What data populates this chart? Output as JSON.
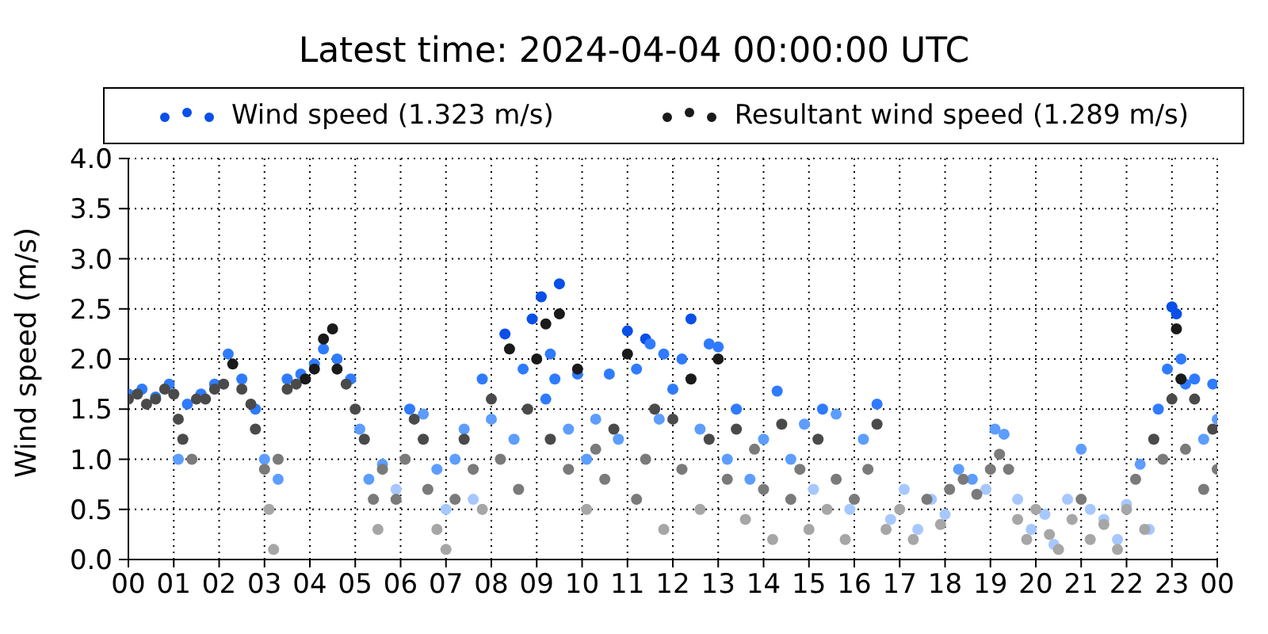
{
  "chart_data": {
    "type": "scatter",
    "title": "Latest time: 2024-04-04 00:00:00 UTC",
    "ylabel": "Wind speed (m/s)",
    "marker": "circle",
    "grid": true,
    "legend": "top",
    "xlim": [
      0,
      24
    ],
    "xticks": [
      {
        "value": 0,
        "label": "00"
      },
      {
        "value": 1,
        "label": "01"
      },
      {
        "value": 2,
        "label": "02"
      },
      {
        "value": 3,
        "label": "03"
      },
      {
        "value": 4,
        "label": "04"
      },
      {
        "value": 5,
        "label": "05"
      },
      {
        "value": 6,
        "label": "06"
      },
      {
        "value": 7,
        "label": "07"
      },
      {
        "value": 8,
        "label": "08"
      },
      {
        "value": 9,
        "label": "09"
      },
      {
        "value": 10,
        "label": "10"
      },
      {
        "value": 11,
        "label": "11"
      },
      {
        "value": 12,
        "label": "12"
      },
      {
        "value": 13,
        "label": "13"
      },
      {
        "value": 14,
        "label": "14"
      },
      {
        "value": 15,
        "label": "15"
      },
      {
        "value": 16,
        "label": "16"
      },
      {
        "value": 17,
        "label": "17"
      },
      {
        "value": 18,
        "label": "18"
      },
      {
        "value": 19,
        "label": "19"
      },
      {
        "value": 20,
        "label": "20"
      },
      {
        "value": 21,
        "label": "21"
      },
      {
        "value": 22,
        "label": "22"
      },
      {
        "value": 23,
        "label": "23"
      },
      {
        "value": 24,
        "label": "00"
      }
    ],
    "ylim": [
      0,
      4
    ],
    "yticks": [
      {
        "value": 0,
        "label": "0.0"
      },
      {
        "value": 0.5,
        "label": "0.5"
      },
      {
        "value": 1,
        "label": "1.0"
      },
      {
        "value": 1.5,
        "label": "1.5"
      },
      {
        "value": 2,
        "label": "2.0"
      },
      {
        "value": 2.5,
        "label": "2.5"
      },
      {
        "value": 3,
        "label": "3.0"
      },
      {
        "value": 3.5,
        "label": "3.5"
      },
      {
        "value": 4,
        "label": "4.0"
      }
    ],
    "series": [
      {
        "name": "Wind speed (1.323 m/s)",
        "color": "#0a4fe8",
        "x": [
          0.0,
          0.3,
          0.6,
          0.9,
          1.1,
          1.3,
          1.6,
          1.9,
          2.2,
          2.5,
          2.8,
          3.0,
          3.3,
          3.5,
          3.8,
          4.1,
          4.3,
          4.6,
          4.9,
          5.1,
          5.3,
          5.6,
          5.9,
          6.2,
          6.5,
          6.8,
          7.0,
          7.2,
          7.4,
          7.6,
          7.8,
          8.0,
          8.3,
          8.5,
          8.7,
          8.9,
          9.1,
          9.2,
          9.3,
          9.4,
          9.5,
          9.7,
          9.9,
          10.1,
          10.3,
          10.6,
          10.8,
          11.0,
          11.2,
          11.4,
          11.5,
          11.7,
          11.8,
          12.0,
          12.2,
          12.4,
          12.6,
          12.8,
          13.0,
          13.2,
          13.4,
          13.7,
          14.0,
          14.3,
          14.6,
          14.9,
          15.1,
          15.3,
          15.6,
          15.9,
          16.2,
          16.5,
          16.8,
          17.1,
          17.4,
          17.7,
          18.0,
          18.3,
          18.6,
          18.9,
          19.1,
          19.3,
          19.6,
          19.9,
          20.2,
          20.4,
          20.7,
          21.0,
          21.2,
          21.5,
          21.8,
          22.0,
          22.3,
          22.5,
          22.7,
          22.9,
          23.0,
          23.1,
          23.2,
          23.3,
          23.5,
          23.7,
          23.9,
          24.0
        ],
        "values": [
          1.65,
          1.7,
          1.62,
          1.75,
          1.0,
          1.55,
          1.65,
          1.75,
          2.05,
          1.8,
          1.5,
          1.0,
          0.8,
          1.8,
          1.85,
          1.95,
          2.1,
          2.0,
          1.8,
          1.3,
          0.8,
          0.95,
          0.7,
          1.5,
          1.45,
          0.9,
          0.5,
          1.0,
          1.3,
          0.6,
          1.8,
          1.4,
          2.25,
          1.2,
          1.9,
          2.4,
          2.62,
          1.6,
          2.05,
          1.8,
          2.75,
          1.3,
          1.85,
          1.0,
          1.4,
          1.85,
          1.2,
          2.28,
          1.9,
          2.2,
          2.15,
          1.4,
          2.05,
          1.7,
          2.0,
          2.4,
          1.3,
          2.15,
          2.12,
          1.0,
          1.5,
          0.8,
          1.2,
          1.68,
          1.0,
          1.35,
          0.7,
          1.5,
          1.45,
          0.5,
          1.2,
          1.55,
          0.4,
          0.7,
          0.3,
          0.6,
          0.45,
          0.9,
          0.8,
          0.7,
          1.3,
          1.25,
          0.6,
          0.3,
          0.45,
          0.15,
          0.6,
          1.1,
          0.5,
          0.4,
          0.2,
          0.55,
          0.95,
          0.3,
          1.5,
          1.9,
          2.52,
          2.45,
          2.0,
          1.75,
          1.8,
          1.2,
          1.75,
          1.4
        ],
        "colors": [
          "#2f7bff",
          "#2f7bff",
          "#2f7bff",
          "#2f7bff",
          "#5c9dff",
          "#2f7bff",
          "#2f7bff",
          "#2f7bff",
          "#2f7bff",
          "#2f7bff",
          "#2f7bff",
          "#5c9dff",
          "#5c9dff",
          "#2f7bff",
          "#2f7bff",
          "#2f7bff",
          "#2f7bff",
          "#2f7bff",
          "#2f7bff",
          "#5c9dff",
          "#5c9dff",
          "#5c9dff",
          "#a6c8ff",
          "#2f7bff",
          "#5c9dff",
          "#5c9dff",
          "#a6c8ff",
          "#5c9dff",
          "#5c9dff",
          "#a6c8ff",
          "#2f7bff",
          "#5c9dff",
          "#0a4fe8",
          "#5c9dff",
          "#2f7bff",
          "#0a4fe8",
          "#0a4fe8",
          "#2f7bff",
          "#2f7bff",
          "#2f7bff",
          "#0a4fe8",
          "#5c9dff",
          "#2f7bff",
          "#5c9dff",
          "#5c9dff",
          "#2f7bff",
          "#5c9dff",
          "#0a4fe8",
          "#2f7bff",
          "#0a4fe8",
          "#2f7bff",
          "#5c9dff",
          "#2f7bff",
          "#2f7bff",
          "#2f7bff",
          "#0a4fe8",
          "#5c9dff",
          "#2f7bff",
          "#2f7bff",
          "#5c9dff",
          "#2f7bff",
          "#5c9dff",
          "#5c9dff",
          "#2f7bff",
          "#5c9dff",
          "#5c9dff",
          "#a6c8ff",
          "#2f7bff",
          "#5c9dff",
          "#a6c8ff",
          "#5c9dff",
          "#2f7bff",
          "#a6c8ff",
          "#a6c8ff",
          "#a6c8ff",
          "#a6c8ff",
          "#a6c8ff",
          "#5c9dff",
          "#5c9dff",
          "#a6c8ff",
          "#5c9dff",
          "#5c9dff",
          "#a6c8ff",
          "#a6c8ff",
          "#a6c8ff",
          "#a6c8ff",
          "#a6c8ff",
          "#5c9dff",
          "#a6c8ff",
          "#a6c8ff",
          "#a6c8ff",
          "#a6c8ff",
          "#5c9dff",
          "#a6c8ff",
          "#2f7bff",
          "#2f7bff",
          "#0a4fe8",
          "#0a4fe8",
          "#2f7bff",
          "#2f7bff",
          "#2f7bff",
          "#5c9dff",
          "#2f7bff",
          "#5c9dff"
        ]
      },
      {
        "name": "Resultant wind speed (1.289 m/s)",
        "color": "#1a1a1a",
        "x": [
          0.0,
          0.2,
          0.4,
          0.6,
          0.8,
          1.0,
          1.1,
          1.2,
          1.4,
          1.5,
          1.7,
          1.9,
          2.1,
          2.3,
          2.5,
          2.7,
          2.8,
          3.0,
          3.1,
          3.2,
          3.3,
          3.5,
          3.7,
          3.9,
          4.1,
          4.3,
          4.5,
          4.6,
          4.8,
          5.0,
          5.2,
          5.4,
          5.5,
          5.6,
          5.9,
          6.1,
          6.3,
          6.5,
          6.6,
          6.8,
          7.0,
          7.2,
          7.4,
          7.6,
          7.8,
          8.0,
          8.2,
          8.4,
          8.6,
          8.8,
          9.0,
          9.2,
          9.3,
          9.5,
          9.7,
          9.9,
          10.1,
          10.3,
          10.5,
          10.7,
          11.0,
          11.2,
          11.4,
          11.6,
          11.8,
          12.0,
          12.2,
          12.4,
          12.6,
          12.8,
          13.0,
          13.2,
          13.4,
          13.6,
          13.8,
          14.0,
          14.2,
          14.4,
          14.6,
          14.8,
          15.0,
          15.2,
          15.4,
          15.6,
          15.8,
          16.0,
          16.3,
          16.5,
          16.7,
          17.0,
          17.3,
          17.6,
          17.9,
          18.1,
          18.4,
          18.7,
          19.0,
          19.2,
          19.4,
          19.6,
          19.8,
          20.0,
          20.3,
          20.5,
          20.8,
          21.0,
          21.2,
          21.5,
          21.8,
          22.0,
          22.2,
          22.4,
          22.6,
          22.8,
          23.0,
          23.1,
          23.2,
          23.3,
          23.5,
          23.7,
          23.9,
          24.0
        ],
        "values": [
          1.6,
          1.65,
          1.55,
          1.6,
          1.7,
          1.65,
          1.4,
          1.2,
          1.0,
          1.6,
          1.6,
          1.7,
          1.75,
          1.95,
          1.7,
          1.55,
          1.3,
          0.9,
          0.5,
          0.1,
          1.0,
          1.7,
          1.75,
          1.8,
          1.9,
          2.2,
          2.3,
          1.9,
          1.75,
          1.5,
          1.2,
          0.6,
          0.3,
          0.9,
          0.6,
          1.0,
          1.4,
          1.2,
          0.7,
          0.3,
          0.1,
          0.6,
          1.2,
          0.9,
          0.5,
          1.6,
          1.0,
          2.1,
          0.7,
          1.5,
          2.0,
          2.35,
          1.2,
          2.45,
          0.9,
          1.9,
          0.5,
          1.1,
          0.8,
          1.3,
          2.05,
          0.6,
          1.0,
          1.5,
          0.3,
          1.4,
          0.9,
          1.8,
          0.5,
          1.2,
          2.0,
          0.8,
          1.3,
          0.4,
          1.1,
          0.7,
          0.2,
          1.35,
          0.6,
          0.9,
          0.3,
          1.2,
          0.5,
          0.8,
          0.2,
          0.6,
          0.9,
          1.35,
          0.3,
          0.5,
          0.2,
          0.6,
          0.35,
          0.7,
          0.8,
          0.65,
          0.9,
          1.05,
          0.9,
          0.4,
          0.2,
          0.5,
          0.25,
          0.1,
          0.4,
          0.6,
          0.2,
          0.35,
          0.1,
          0.5,
          0.8,
          0.3,
          1.2,
          1.0,
          1.6,
          2.3,
          1.8,
          1.1,
          1.6,
          0.7,
          1.3,
          0.9
        ],
        "colors": [
          "#4a4a4a",
          "#4a4a4a",
          "#4a4a4a",
          "#4a4a4a",
          "#4a4a4a",
          "#4a4a4a",
          "#4a4a4a",
          "#4a4a4a",
          "#7a7a7a",
          "#4a4a4a",
          "#4a4a4a",
          "#4a4a4a",
          "#4a4a4a",
          "#1a1a1a",
          "#4a4a4a",
          "#4a4a4a",
          "#4a4a4a",
          "#7a7a7a",
          "#a6a6a6",
          "#a6a6a6",
          "#7a7a7a",
          "#4a4a4a",
          "#4a4a4a",
          "#1a1a1a",
          "#1a1a1a",
          "#1a1a1a",
          "#1a1a1a",
          "#1a1a1a",
          "#4a4a4a",
          "#4a4a4a",
          "#4a4a4a",
          "#7a7a7a",
          "#a6a6a6",
          "#7a7a7a",
          "#7a7a7a",
          "#7a7a7a",
          "#4a4a4a",
          "#4a4a4a",
          "#7a7a7a",
          "#a6a6a6",
          "#a6a6a6",
          "#7a7a7a",
          "#4a4a4a",
          "#7a7a7a",
          "#a6a6a6",
          "#4a4a4a",
          "#7a7a7a",
          "#1a1a1a",
          "#7a7a7a",
          "#4a4a4a",
          "#1a1a1a",
          "#1a1a1a",
          "#4a4a4a",
          "#1a1a1a",
          "#7a7a7a",
          "#1a1a1a",
          "#a6a6a6",
          "#7a7a7a",
          "#7a7a7a",
          "#4a4a4a",
          "#1a1a1a",
          "#7a7a7a",
          "#7a7a7a",
          "#4a4a4a",
          "#a6a6a6",
          "#4a4a4a",
          "#7a7a7a",
          "#1a1a1a",
          "#a6a6a6",
          "#4a4a4a",
          "#1a1a1a",
          "#7a7a7a",
          "#4a4a4a",
          "#a6a6a6",
          "#7a7a7a",
          "#7a7a7a",
          "#a6a6a6",
          "#4a4a4a",
          "#7a7a7a",
          "#7a7a7a",
          "#a6a6a6",
          "#4a4a4a",
          "#a6a6a6",
          "#7a7a7a",
          "#a6a6a6",
          "#7a7a7a",
          "#7a7a7a",
          "#4a4a4a",
          "#a6a6a6",
          "#a6a6a6",
          "#a6a6a6",
          "#7a7a7a",
          "#a6a6a6",
          "#7a7a7a",
          "#7a7a7a",
          "#7a7a7a",
          "#7a7a7a",
          "#7a7a7a",
          "#7a7a7a",
          "#a6a6a6",
          "#a6a6a6",
          "#a6a6a6",
          "#a6a6a6",
          "#a6a6a6",
          "#a6a6a6",
          "#7a7a7a",
          "#a6a6a6",
          "#a6a6a6",
          "#a6a6a6",
          "#a6a6a6",
          "#7a7a7a",
          "#a6a6a6",
          "#4a4a4a",
          "#7a7a7a",
          "#4a4a4a",
          "#1a1a1a",
          "#1a1a1a",
          "#7a7a7a",
          "#4a4a4a",
          "#7a7a7a",
          "#4a4a4a",
          "#7a7a7a"
        ]
      }
    ]
  }
}
